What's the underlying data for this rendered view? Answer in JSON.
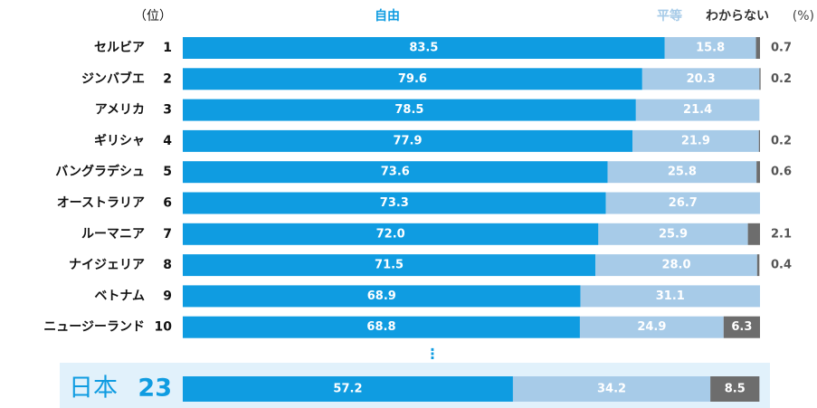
{
  "chart_data": {
    "type": "stacked_bar_h",
    "rank_label": "（位）",
    "unit_label": "(%)",
    "categories": [
      "セルビア",
      "ジンバブエ",
      "アメリカ",
      "ギリシャ",
      "バングラデシュ",
      "オーストラリア",
      "ルーマニア",
      "ナイジェリア",
      "ベトナム",
      "ニュージーランド",
      "日本"
    ],
    "ranks": [
      1,
      2,
      3,
      4,
      5,
      6,
      7,
      8,
      9,
      10,
      23
    ],
    "xlim": [
      0,
      100
    ],
    "series": [
      {
        "name": "自由",
        "color": "#0f9ce1",
        "values": [
          83.5,
          79.6,
          78.5,
          77.9,
          73.6,
          73.3,
          72.0,
          71.5,
          68.9,
          68.8,
          57.2
        ],
        "value_labels": [
          "83.5",
          "79.6",
          "78.5",
          "77.9",
          "73.6",
          "73.3",
          "72.0",
          "71.5",
          "68.9",
          "68.8",
          "57.2"
        ]
      },
      {
        "name": "平等",
        "color": "#a7cbe8",
        "values": [
          15.8,
          20.3,
          21.4,
          21.9,
          25.8,
          26.7,
          25.9,
          28.0,
          31.1,
          24.9,
          34.2
        ],
        "value_labels": [
          "15.8",
          "20.3",
          "21.4",
          "21.9",
          "25.8",
          "26.7",
          "25.9",
          "28.0",
          "31.1",
          "24.9",
          "34.2"
        ]
      },
      {
        "name": "わからない",
        "color": "#6d6d6d",
        "values": [
          0.7,
          0.2,
          null,
          0.2,
          0.6,
          null,
          2.1,
          0.4,
          null,
          6.3,
          8.5
        ],
        "value_labels": [
          "0.7",
          "0.2",
          null,
          "0.2",
          "0.6",
          null,
          "2.1",
          "0.4",
          null,
          "6.3",
          "8.5"
        ]
      }
    ]
  }
}
